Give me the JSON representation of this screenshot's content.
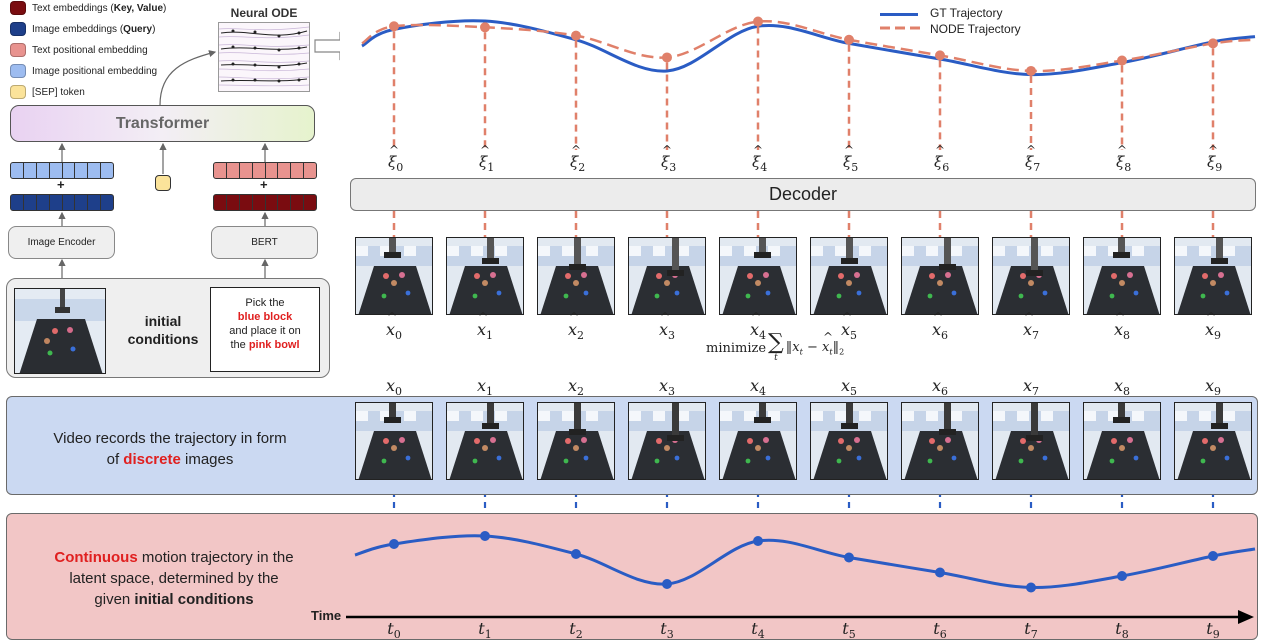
{
  "legend": {
    "items": [
      {
        "text_before": "Text embeddings (",
        "bold": "Key, Value",
        "text_after": ")",
        "color": "#7a0c10"
      },
      {
        "text_before": "Image embeddings (",
        "bold": "Query",
        "text_after": ")",
        "color": "#1e3f8a"
      },
      {
        "text_before": "Text positional embedding",
        "bold": "",
        "text_after": "",
        "color": "#e8938f"
      },
      {
        "text_before": "Image positional embedding",
        "bold": "",
        "text_after": "",
        "color": "#9dbcf0"
      },
      {
        "text_before": "[SEP] token",
        "bold": "",
        "text_after": "",
        "color": "#fbe39a"
      }
    ]
  },
  "neural_ode": {
    "title": "Neural ODE"
  },
  "transformer": {
    "label": "Transformer"
  },
  "encoder": {
    "image_encoder_label": "Image Encoder",
    "bert_label": "BERT",
    "plus": "+"
  },
  "initial": {
    "label_line1": "initial",
    "label_line2": "conditions",
    "instruction_1": "Pick the",
    "instruction_2": "blue block",
    "instruction_3": "and place it on",
    "instruction_4": "the ",
    "instruction_5": "pink bowl"
  },
  "traj_legend": {
    "gt": "GT Trajectory",
    "node": "NODE Trajectory"
  },
  "decoder": {
    "label": "Decoder"
  },
  "xi_labels": [
    "ξ",
    "ξ",
    "ξ",
    "ξ",
    "ξ",
    "ξ",
    "ξ",
    "ξ",
    "ξ",
    "ξ"
  ],
  "indices": [
    "0",
    "1",
    "2",
    "3",
    "4",
    "5",
    "6",
    "7",
    "8",
    "9"
  ],
  "x_symbol": "x",
  "t_symbol": "t",
  "loss": {
    "text": "minimize",
    "sigma": "∑",
    "sub": "t",
    "norm": "‖x",
    "minus": " − ",
    "norm2": "‖",
    "two": "2"
  },
  "video_panel": {
    "line1": "Video records the trajectory in form",
    "line2_before": "of ",
    "line2_red": "discrete",
    "line2_after": " images"
  },
  "continuous_panel": {
    "red": "Continuous",
    "line1_after": " motion trajectory in the",
    "line2": "latent space, determined by the",
    "line3_before": "given ",
    "line3_bold": "initial conditions"
  },
  "time_label": "Time",
  "colors": {
    "gt": "#2a5cc4",
    "node": "#e0806a",
    "video_bg": "#cbd9f2",
    "cont_bg": "#f2c6c6",
    "red": "#e02020"
  },
  "chart_data": {
    "type": "line",
    "x": [
      0,
      1,
      2,
      3,
      4,
      5,
      6,
      7,
      8,
      9
    ],
    "series": [
      {
        "name": "GT Trajectory",
        "values": [
          0.82,
          0.98,
          0.62,
          0.02,
          0.88,
          0.55,
          0.25,
          -0.05,
          0.18,
          0.58
        ]
      },
      {
        "name": "NODE Trajectory",
        "values": [
          0.88,
          0.86,
          0.7,
          0.28,
          0.97,
          0.62,
          0.32,
          0.02,
          0.22,
          0.55
        ]
      }
    ]
  }
}
